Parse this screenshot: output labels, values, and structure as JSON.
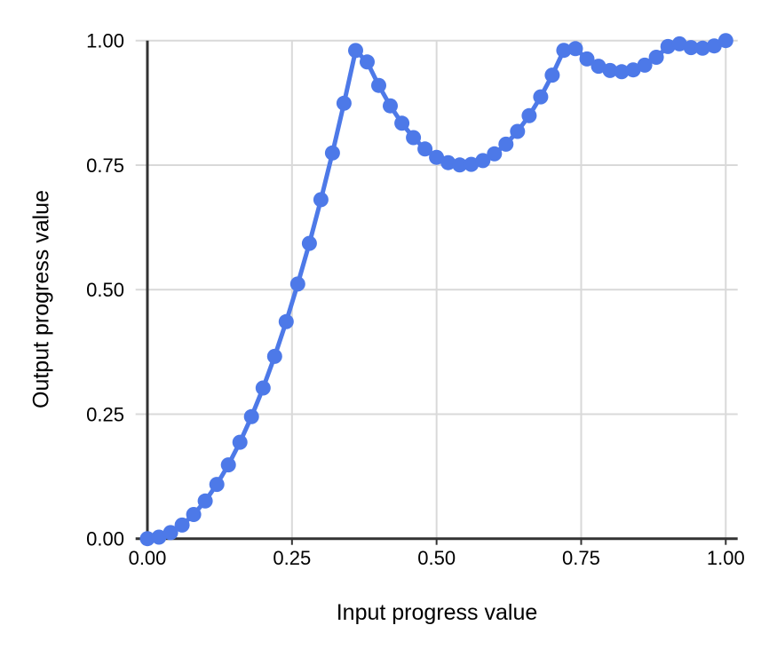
{
  "chart_data": {
    "type": "line",
    "x_axis": {
      "title": "Input progress value",
      "tick_labels": [
        "0.00",
        "0.25",
        "0.50",
        "0.75",
        "1.00"
      ],
      "tick_values": [
        0,
        0.25,
        0.5,
        0.75,
        1
      ]
    },
    "y_axis": {
      "title": "Output progress value",
      "tick_labels": [
        "0.00",
        "0.25",
        "0.50",
        "0.75",
        "1.00"
      ],
      "tick_values": [
        0,
        0.25,
        0.5,
        0.75,
        1
      ]
    },
    "xlabel": "Input progress value",
    "ylabel": "Output progress value",
    "title": "",
    "xlim": [
      0,
      1
    ],
    "ylim": [
      0,
      1
    ],
    "grid": true,
    "legend": false,
    "marker": "circle",
    "x": [
      0,
      0.02,
      0.04,
      0.06,
      0.08,
      0.1,
      0.12,
      0.14,
      0.16,
      0.18,
      0.2,
      0.22,
      0.24,
      0.26,
      0.28,
      0.3,
      0.32,
      0.34,
      0.36,
      0.38,
      0.4,
      0.42,
      0.44,
      0.46,
      0.48,
      0.5,
      0.52,
      0.54,
      0.56,
      0.58,
      0.6,
      0.62,
      0.64,
      0.66,
      0.68,
      0.7,
      0.72,
      0.74,
      0.76,
      0.78,
      0.8,
      0.82,
      0.84,
      0.86,
      0.88,
      0.9,
      0.92,
      0.94,
      0.96,
      0.98,
      1
    ],
    "y": [
      0,
      0.003,
      0.0121,
      0.0272,
      0.0484,
      0.0756,
      0.1089,
      0.1482,
      0.1936,
      0.245,
      0.3025,
      0.366,
      0.4356,
      0.5112,
      0.5929,
      0.6806,
      0.7744,
      0.8742,
      0.9801,
      0.957,
      0.91,
      0.869,
      0.8341,
      0.8052,
      0.7824,
      0.7656,
      0.7549,
      0.7502,
      0.7516,
      0.759,
      0.7725,
      0.792,
      0.8176,
      0.8492,
      0.8869,
      0.9306,
      0.9804,
      0.9837,
      0.9631,
      0.9485,
      0.94,
      0.9375,
      0.9411,
      0.9507,
      0.9664,
      0.9881,
      0.9934,
      0.986,
      0.9846,
      0.9893,
      1
    ],
    "colors": {
      "series": "#4d79e8",
      "gridline": "#d9d9d9",
      "axis_line": "#333333",
      "tick_text": "#000000",
      "background": "#ffffff"
    }
  }
}
